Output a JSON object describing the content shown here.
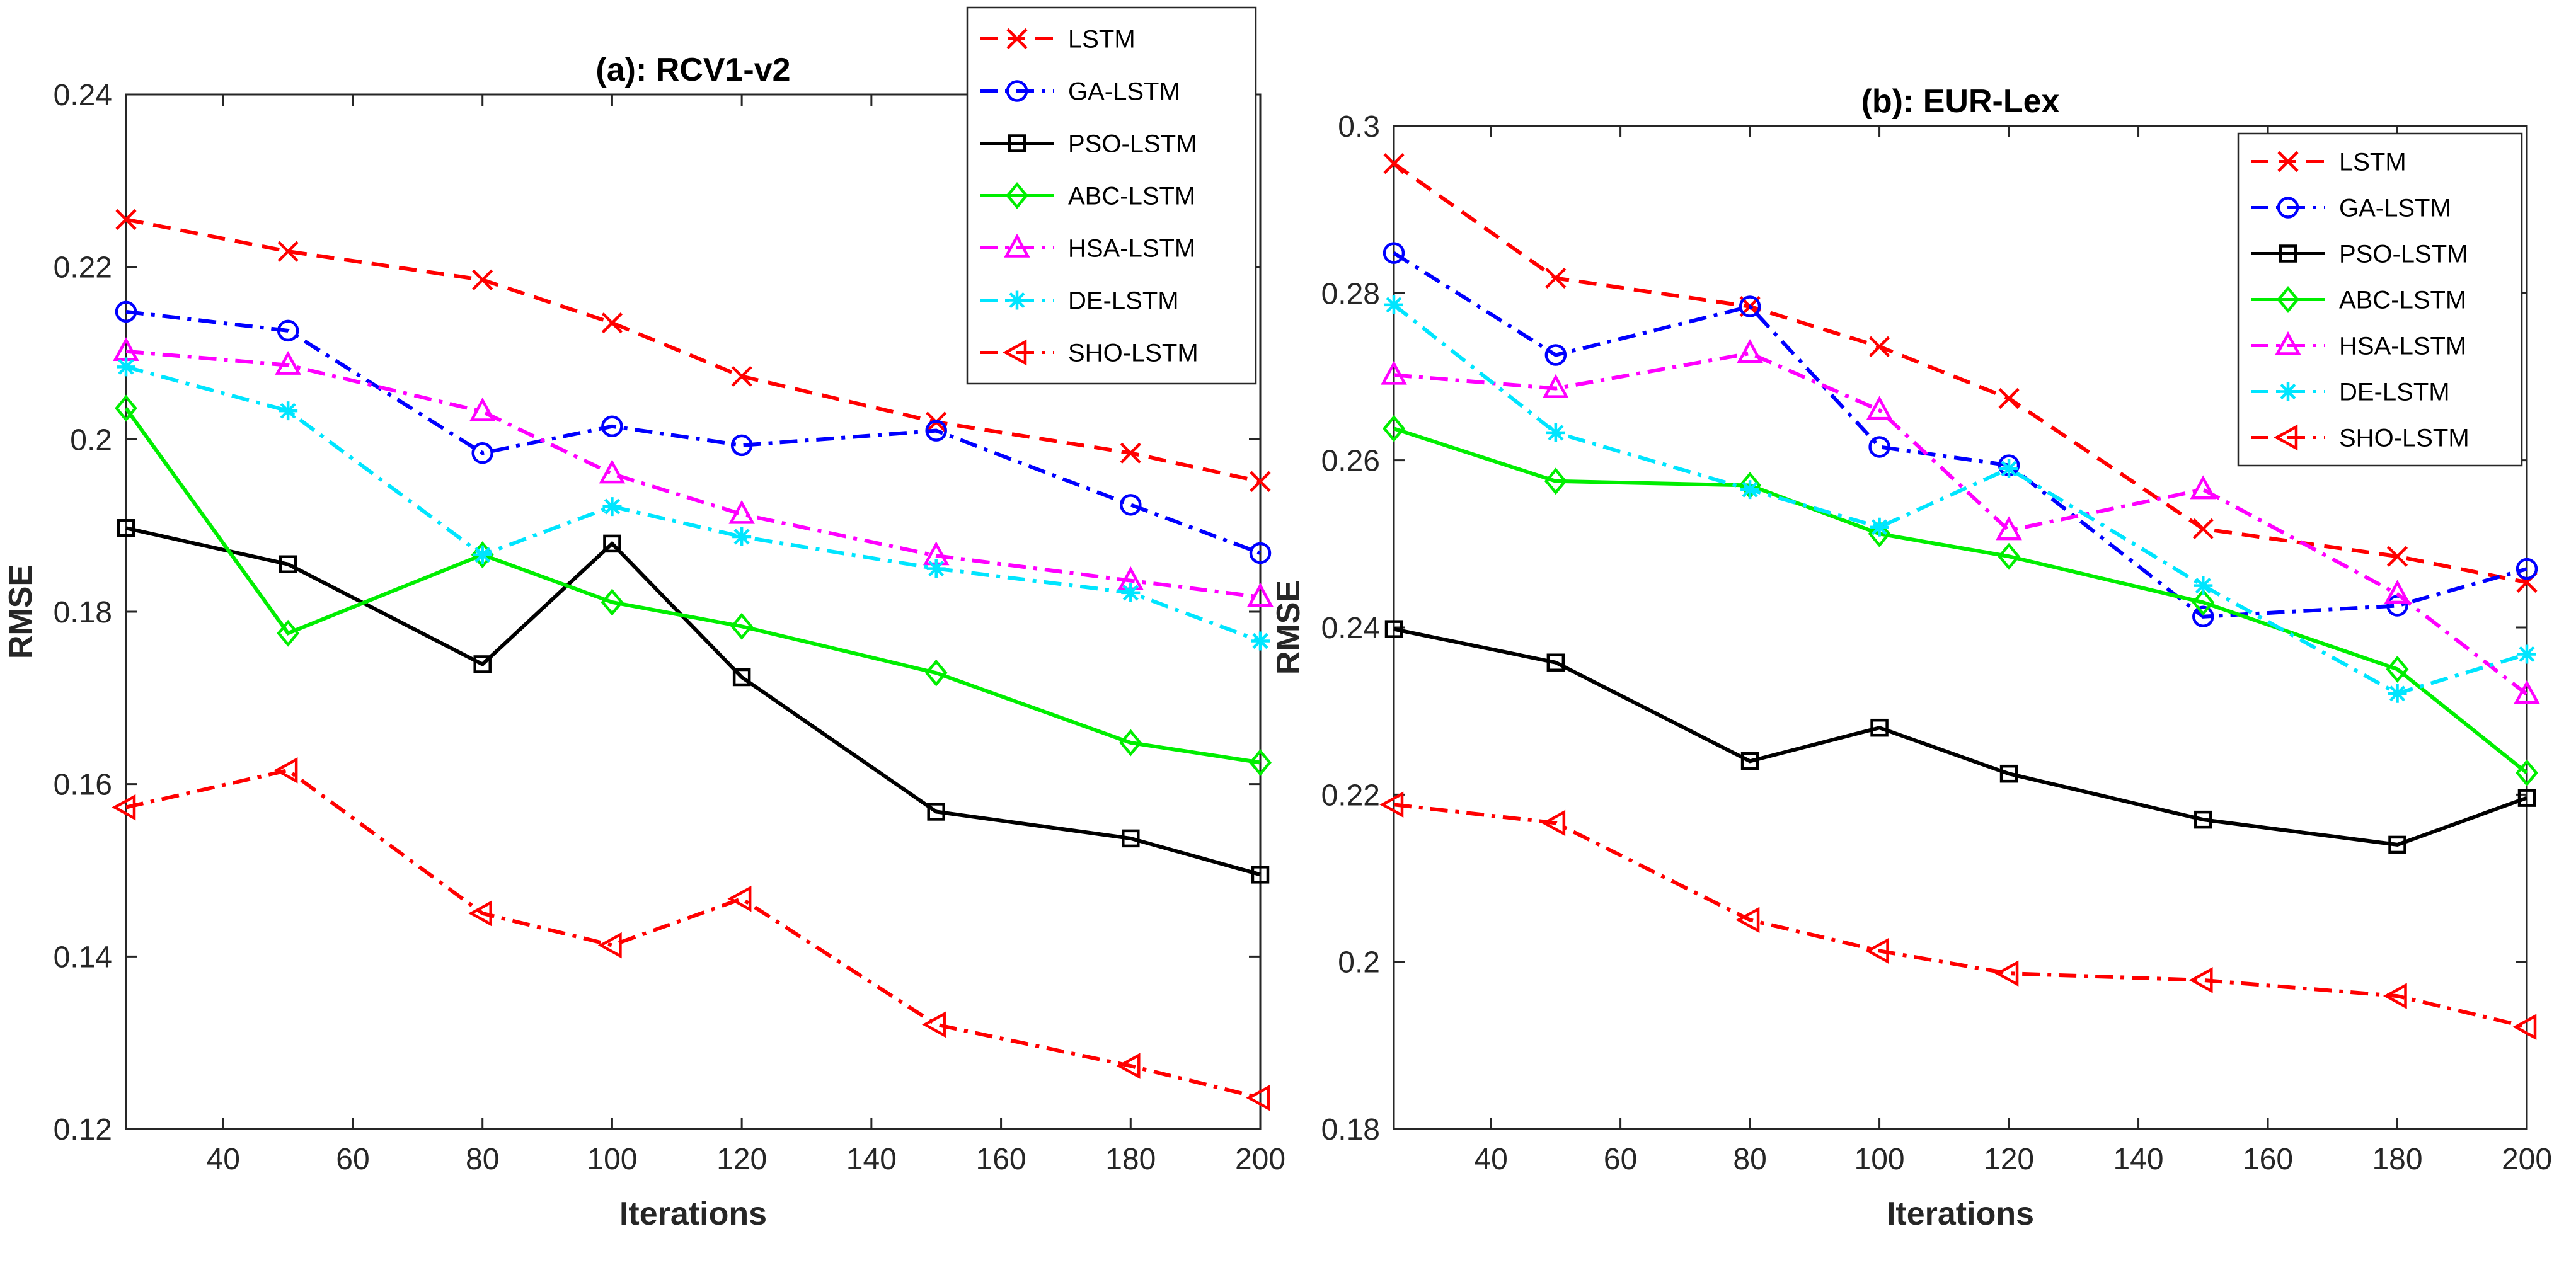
{
  "chart_data": [
    {
      "type": "line",
      "title": "(a): RCV1-v2",
      "xlabel": "Iterations",
      "ylabel": "RMSE",
      "x": [
        25,
        50,
        80,
        100,
        120,
        150,
        180,
        200
      ],
      "xlim": [
        25,
        200
      ],
      "ylim": [
        0.12,
        0.24
      ],
      "xticks": [
        40,
        60,
        80,
        100,
        120,
        140,
        160,
        180,
        200
      ],
      "xtick_labels": [
        "40",
        "60",
        "80",
        "100",
        "120",
        "140",
        "160",
        "180",
        "200"
      ],
      "yticks": [
        0.12,
        0.14,
        0.16,
        0.18,
        0.2,
        0.22,
        0.24
      ],
      "ytick_labels": [
        "0.12",
        "0.14",
        "0.16",
        "0.18",
        "0.2",
        "0.22",
        "0.24"
      ],
      "legend_position": "top-right",
      "series": [
        {
          "name": "LSTM",
          "color": "#ff0000",
          "dash": "dashed",
          "marker": "x",
          "values": [
            0.2255,
            0.2218,
            0.2185,
            0.2135,
            0.2073,
            0.202,
            0.1984,
            0.1951
          ]
        },
        {
          "name": "GA-LSTM",
          "color": "#0000ff",
          "dash": "dashdot",
          "marker": "o",
          "values": [
            0.2148,
            0.2126,
            0.1984,
            0.2015,
            0.1993,
            0.201,
            0.1924,
            0.1868
          ]
        },
        {
          "name": "PSO-LSTM",
          "color": "#000000",
          "dash": "solid",
          "marker": "square",
          "values": [
            0.1897,
            0.1855,
            0.1739,
            0.1879,
            0.1724,
            0.1568,
            0.1537,
            0.1495
          ]
        },
        {
          "name": "ABC-LSTM",
          "color": "#00ee00",
          "dash": "solid",
          "marker": "diamond",
          "values": [
            0.2036,
            0.1775,
            0.1866,
            0.1811,
            0.1783,
            0.1729,
            0.1648,
            0.1625
          ]
        },
        {
          "name": "HSA-LSTM",
          "color": "#ff00ff",
          "dash": "dashdot",
          "marker": "triangle-up",
          "values": [
            0.2102,
            0.2086,
            0.2032,
            0.196,
            0.1913,
            0.1865,
            0.1836,
            0.1817
          ]
        },
        {
          "name": "DE-LSTM",
          "color": "#00e5ff",
          "dash": "dashdot",
          "marker": "star",
          "values": [
            0.2084,
            0.2033,
            0.1866,
            0.1922,
            0.1887,
            0.185,
            0.1822,
            0.1766
          ]
        },
        {
          "name": "SHO-LSTM",
          "color": "#ff0000",
          "dash": "dashdot",
          "marker": "triangle-left",
          "values": [
            0.1573,
            0.1616,
            0.145,
            0.1413,
            0.1467,
            0.1321,
            0.1273,
            0.1236
          ]
        }
      ]
    },
    {
      "type": "line",
      "title": "(b): EUR-Lex",
      "xlabel": "Iterations",
      "ylabel": "RMSE",
      "x": [
        25,
        50,
        80,
        100,
        120,
        150,
        180,
        200
      ],
      "xlim": [
        25,
        200
      ],
      "ylim": [
        0.18,
        0.3
      ],
      "xticks": [
        40,
        60,
        80,
        100,
        120,
        140,
        160,
        180,
        200
      ],
      "xtick_labels": [
        "40",
        "60",
        "80",
        "100",
        "120",
        "140",
        "160",
        "180",
        "200"
      ],
      "yticks": [
        0.18,
        0.2,
        0.22,
        0.24,
        0.26,
        0.28,
        0.3
      ],
      "ytick_labels": [
        "0.18",
        "0.2",
        "0.22",
        "0.24",
        "0.26",
        "0.28",
        "0.3"
      ],
      "legend_position": "top-right",
      "series": [
        {
          "name": "LSTM",
          "color": "#ff0000",
          "dash": "dashed",
          "marker": "x",
          "values": [
            0.2955,
            0.2818,
            0.2784,
            0.2736,
            0.2674,
            0.2518,
            0.2485,
            0.2454
          ]
        },
        {
          "name": "GA-LSTM",
          "color": "#0000ff",
          "dash": "dashdot",
          "marker": "o",
          "values": [
            0.2848,
            0.2726,
            0.2784,
            0.2616,
            0.2594,
            0.2413,
            0.2426,
            0.247
          ]
        },
        {
          "name": "PSO-LSTM",
          "color": "#000000",
          "dash": "solid",
          "marker": "square",
          "values": [
            0.2398,
            0.2358,
            0.224,
            0.228,
            0.2225,
            0.217,
            0.214,
            0.2196
          ]
        },
        {
          "name": "ABC-LSTM",
          "color": "#00ee00",
          "dash": "solid",
          "marker": "diamond",
          "values": [
            0.2638,
            0.2575,
            0.257,
            0.2512,
            0.2485,
            0.243,
            0.235,
            0.2226
          ]
        },
        {
          "name": "HSA-LSTM",
          "color": "#ff00ff",
          "dash": "dashdot",
          "marker": "triangle-up",
          "values": [
            0.2702,
            0.2686,
            0.2728,
            0.266,
            0.2516,
            0.2565,
            0.244,
            0.232
          ]
        },
        {
          "name": "DE-LSTM",
          "color": "#00e5ff",
          "dash": "dashdot",
          "marker": "star",
          "values": [
            0.2786,
            0.2633,
            0.2565,
            0.252,
            0.259,
            0.245,
            0.2321,
            0.2368
          ]
        },
        {
          "name": "SHO-LSTM",
          "color": "#ff0000",
          "dash": "dashdot",
          "marker": "triangle-left",
          "values": [
            0.2188,
            0.2166,
            0.205,
            0.2013,
            0.1986,
            0.1978,
            0.1959,
            0.1922
          ]
        }
      ]
    }
  ]
}
